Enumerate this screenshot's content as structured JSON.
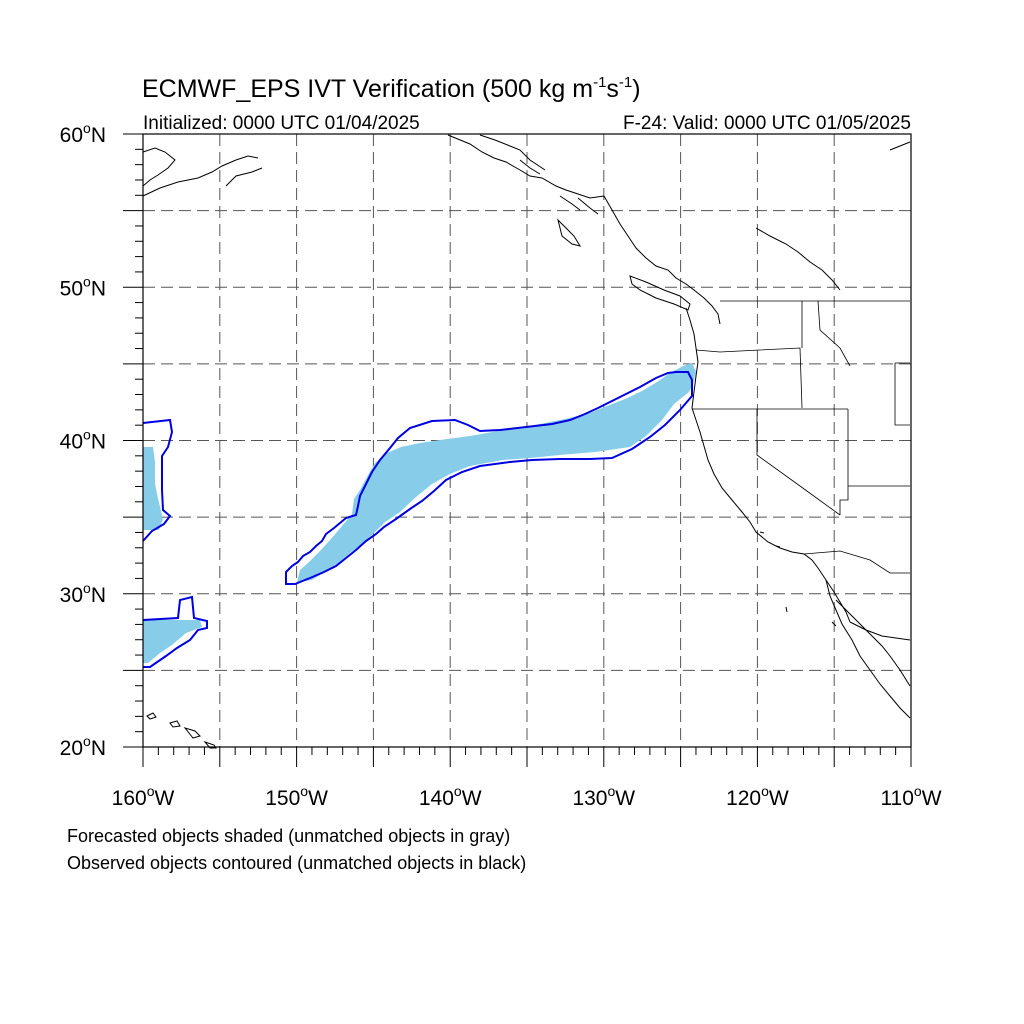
{
  "title": {
    "main": "ECMWF_EPS IVT Verification (500 kg m",
    "exp1": "-1",
    "s": "s",
    "exp2": "-1",
    "close": ")"
  },
  "initialized": "Initialized: 0000 UTC 01/04/2025",
  "valid": "F-24: Valid: 0000 UTC 01/05/2025",
  "lat_labels": [
    {
      "text": "60",
      "deg": "o",
      "hemi": "N",
      "lat": 60
    },
    {
      "text": "50",
      "deg": "o",
      "hemi": "N",
      "lat": 50
    },
    {
      "text": "40",
      "deg": "o",
      "hemi": "N",
      "lat": 40
    },
    {
      "text": "30",
      "deg": "o",
      "hemi": "N",
      "lat": 30
    },
    {
      "text": "20",
      "deg": "o",
      "hemi": "N",
      "lat": 20
    }
  ],
  "lon_labels": [
    {
      "text": "160",
      "deg": "o",
      "hemi": "W",
      "lon": -160
    },
    {
      "text": "150",
      "deg": "o",
      "hemi": "W",
      "lon": -150
    },
    {
      "text": "140",
      "deg": "o",
      "hemi": "W",
      "lon": -140
    },
    {
      "text": "130",
      "deg": "o",
      "hemi": "W",
      "lon": -130
    },
    {
      "text": "120",
      "deg": "o",
      "hemi": "W",
      "lon": -120
    },
    {
      "text": "110",
      "deg": "o",
      "hemi": "W",
      "lon": -110
    }
  ],
  "footer": {
    "line1": "Forecasted objects shaded (unmatched objects in gray)",
    "line2": "Observed objects contoured (unmatched objects in black)"
  },
  "map": {
    "lon_range": [
      -160,
      -110
    ],
    "lat_range": [
      20,
      60
    ],
    "grid_lon_step": 5,
    "grid_lat_step": 5,
    "forecast_color": "#87cdea",
    "observed_color": "#0000e0",
    "land_color": "#000000"
  }
}
